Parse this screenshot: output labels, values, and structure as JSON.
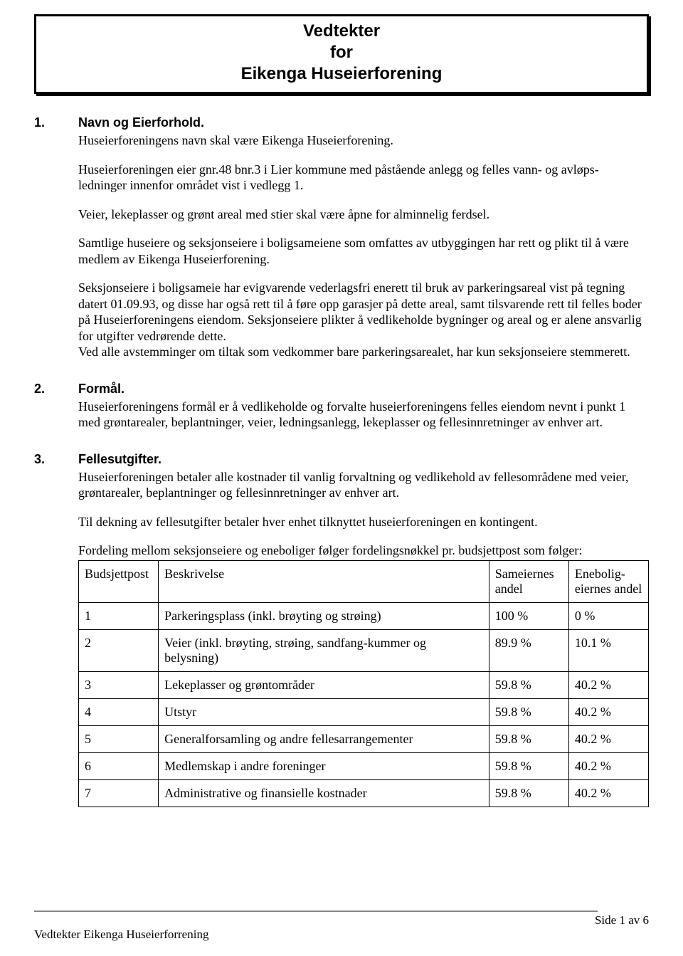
{
  "header": {
    "line1": "Vedtekter",
    "line2": "for",
    "line3": "Eikenga Huseierforening"
  },
  "sections": [
    {
      "num": "1.",
      "title": "Navn og Eierforhold.",
      "paragraphs": [
        "Huseierforeningens navn skal være Eikenga Huseierforening.",
        "Huseierforeningen eier gnr.48 bnr.3 i Lier kommune med påstående anlegg og felles vann- og avløps- ledninger innenfor området vist i vedlegg 1.",
        "Veier, lekeplasser og grønt areal med stier skal være åpne for alminnelig ferdsel.",
        "Samtlige huseiere og seksjonseiere i boligsameiene som omfattes av utbyggingen har rett og plikt til å være medlem av Eikenga Huseierforening.",
        "Seksjonseiere i boligsameie har evigvarende vederlagsfri enerett til bruk av parkeringsareal vist på tegning datert 01.09.93, og disse har også rett til å føre opp garasjer på dette areal, samt tilsvarende rett til felles boder på Huseierforeningens eiendom. Seksjonseiere plikter å vedlikeholde bygninger og areal og er alene ansvarlig for utgifter vedrørende dette.\nVed alle avstemminger om tiltak som vedkommer bare parkeringsarealet, har kun seksjonseiere stemmerett."
      ]
    },
    {
      "num": "2.",
      "title": "Formål.",
      "paragraphs": [
        "Huseierforeningens formål er å vedlikeholde og forvalte huseierforeningens felles eiendom nevnt i punkt 1 med grøntarealer, beplantninger, veier, ledningsanlegg, lekeplasser og fellesinnretninger av enhver art."
      ]
    },
    {
      "num": "3.",
      "title": "Fellesutgifter.",
      "paragraphs": [
        "Huseierforeningen betaler alle kostnader til vanlig forvaltning og vedlikehold av fellesområdene med veier, grøntarealer, beplantninger og fellesinnretninger av enhver art.",
        "Til dekning av fellesutgifter betaler hver enhet tilknyttet huseierforeningen en kontingent."
      ],
      "table_intro": "Fordeling mellom seksjonseiere og eneboliger følger fordelingsnøkkel pr. budsjettpost som følger:",
      "table": {
        "columns": [
          "Budsjettpost",
          "Beskrivelse",
          "Sameiernes andel",
          "Enebolig-eiernes andel"
        ],
        "rows": [
          [
            "1",
            "Parkeringsplass (inkl. brøyting og strøing)",
            "100 %",
            "0 %"
          ],
          [
            "2",
            "Veier (inkl. brøyting, strøing, sandfang-kummer og belysning)",
            "89.9 %",
            "10.1 %"
          ],
          [
            "3",
            "Lekeplasser og grøntområder",
            "59.8 %",
            "40.2 %"
          ],
          [
            "4",
            "Utstyr",
            "59.8 %",
            "40.2 %"
          ],
          [
            "5",
            "Generalforsamling og andre fellesarrangementer",
            "59.8 %",
            "40.2 %"
          ],
          [
            "6",
            "Medlemskap i andre foreninger",
            "59.8 %",
            "40.2 %"
          ],
          [
            "7",
            "Administrative og finansielle kostnader",
            "59.8 %",
            "40.2 %"
          ]
        ]
      }
    }
  ],
  "footer": {
    "rule": "________________________________________________________________________________________",
    "left": "Vedtekter Eikenga Huseierforrening",
    "right": "Side 1 av 6"
  }
}
